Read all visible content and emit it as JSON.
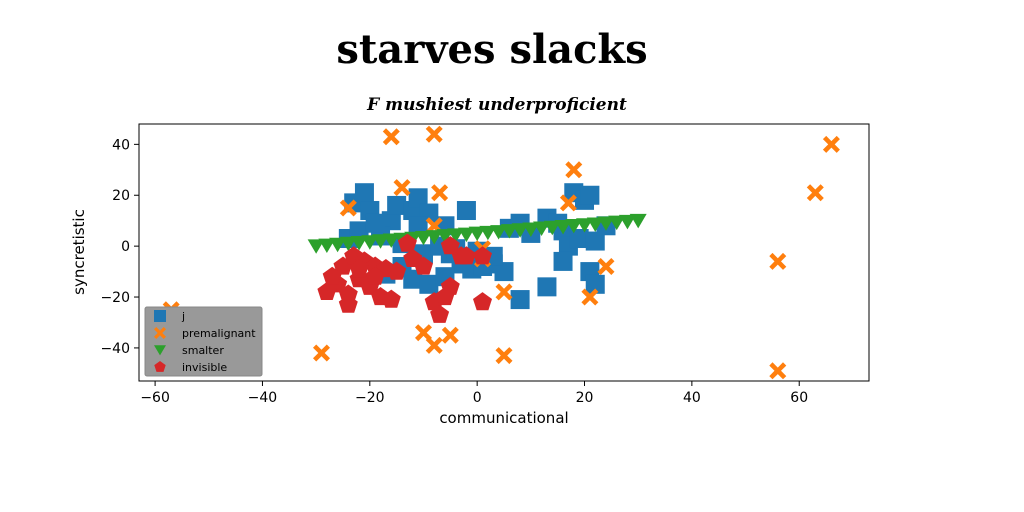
{
  "figure": {
    "suptitle": "starves slacks",
    "title": "F mushiest underproficient"
  },
  "chart_data": {
    "type": "scatter",
    "title": "F mushiest underproficient",
    "xlabel": "communicational",
    "ylabel": "syncretistic",
    "xlim": [
      -63,
      73
    ],
    "ylim": [
      -53,
      48
    ],
    "xticks": [
      -60,
      -40,
      -20,
      0,
      20,
      40,
      60
    ],
    "yticks": [
      -40,
      -20,
      0,
      20,
      40
    ],
    "grid": false,
    "legend_position": "lower-left",
    "series": [
      {
        "name": "j",
        "marker": "square",
        "color": "#1f77b4",
        "points": [
          [
            -23,
            17
          ],
          [
            -21,
            21
          ],
          [
            -20,
            14
          ],
          [
            -16,
            10
          ],
          [
            -15,
            16
          ],
          [
            -12,
            14
          ],
          [
            -11,
            19
          ],
          [
            -9,
            13
          ],
          [
            -6,
            8
          ],
          [
            -2,
            14
          ],
          [
            -24,
            3
          ],
          [
            -22,
            6
          ],
          [
            -18,
            4
          ],
          [
            -14,
            1
          ],
          [
            -10,
            -3
          ],
          [
            -7,
            0
          ],
          [
            -5,
            -3
          ],
          [
            -3,
            -7
          ],
          [
            -1,
            -9
          ],
          [
            1,
            -8
          ],
          [
            3,
            -7
          ],
          [
            5,
            -10
          ],
          [
            3,
            -4
          ],
          [
            6,
            7
          ],
          [
            8,
            9
          ],
          [
            10,
            5
          ],
          [
            13,
            11
          ],
          [
            15,
            9
          ],
          [
            16,
            6
          ],
          [
            17,
            0
          ],
          [
            18,
            21
          ],
          [
            20,
            18
          ],
          [
            21,
            20
          ],
          [
            19,
            3
          ],
          [
            22,
            2
          ],
          [
            24,
            8
          ],
          [
            16,
            -6
          ],
          [
            21,
            -10
          ],
          [
            22,
            -15
          ],
          [
            13,
            -16
          ],
          [
            8,
            -21
          ],
          [
            -12,
            -13
          ],
          [
            -9,
            -15
          ],
          [
            -14,
            -8
          ],
          [
            -17,
            -11
          ],
          [
            -6,
            -12
          ],
          [
            -4,
            -1
          ],
          [
            0,
            -2
          ],
          [
            -11,
            8
          ],
          [
            -19,
            9
          ]
        ]
      },
      {
        "name": "premalignant",
        "marker": "x",
        "color": "#ff7f0e",
        "points": [
          [
            -16,
            43
          ],
          [
            -8,
            44
          ],
          [
            -14,
            23
          ],
          [
            -7,
            21
          ],
          [
            -24,
            15
          ],
          [
            -8,
            8
          ],
          [
            1,
            -1
          ],
          [
            1,
            -5
          ],
          [
            5,
            -18
          ],
          [
            17,
            17
          ],
          [
            18,
            30
          ],
          [
            24,
            -8
          ],
          [
            21,
            -20
          ],
          [
            -57,
            -25
          ],
          [
            -29,
            -42
          ],
          [
            -10,
            -34
          ],
          [
            -8,
            -39
          ],
          [
            -5,
            -35
          ],
          [
            5,
            -43
          ],
          [
            56,
            -6
          ],
          [
            56,
            -49
          ],
          [
            63,
            21
          ],
          [
            66,
            40
          ]
        ]
      },
      {
        "name": "smalter",
        "marker": "triangle-down",
        "color": "#2ca02c",
        "points": [
          [
            -30,
            0
          ],
          [
            -28,
            0.3
          ],
          [
            -26,
            0.6
          ],
          [
            -24,
            1
          ],
          [
            -22,
            1.3
          ],
          [
            -20,
            1.6
          ],
          [
            -18,
            2
          ],
          [
            -16,
            2.3
          ],
          [
            -14,
            2.6
          ],
          [
            -12,
            3
          ],
          [
            -10,
            3.3
          ],
          [
            -8,
            3.6
          ],
          [
            -6,
            4
          ],
          [
            -4,
            4.3
          ],
          [
            -2,
            4.6
          ],
          [
            0,
            5
          ],
          [
            2,
            5.3
          ],
          [
            4,
            5.6
          ],
          [
            6,
            6
          ],
          [
            8,
            6.3
          ],
          [
            10,
            6.6
          ],
          [
            12,
            7
          ],
          [
            14,
            7.3
          ],
          [
            16,
            7.6
          ],
          [
            18,
            8
          ],
          [
            20,
            8.3
          ],
          [
            22,
            8.6
          ],
          [
            24,
            9
          ],
          [
            26,
            9.3
          ],
          [
            28,
            9.6
          ],
          [
            30,
            10
          ]
        ]
      },
      {
        "name": "invisible",
        "marker": "pentagon",
        "color": "#d62728",
        "points": [
          [
            -25,
            -8
          ],
          [
            -23,
            -4
          ],
          [
            -21,
            -6
          ],
          [
            -19,
            -8
          ],
          [
            -17,
            -9
          ],
          [
            -15,
            -10
          ],
          [
            -26,
            -15
          ],
          [
            -24,
            -19
          ],
          [
            -22,
            -13
          ],
          [
            -20,
            -16
          ],
          [
            -18,
            -20
          ],
          [
            -16,
            -21
          ],
          [
            -24,
            -23
          ],
          [
            -28,
            -18
          ],
          [
            -27,
            -12
          ],
          [
            -13,
            1
          ],
          [
            -10,
            -8
          ],
          [
            -8,
            -22
          ],
          [
            -7,
            -27
          ],
          [
            -5,
            -16
          ],
          [
            -3,
            -4
          ],
          [
            -2,
            -4
          ],
          [
            1,
            -4
          ],
          [
            -5,
            0
          ],
          [
            -6,
            -20
          ],
          [
            -19,
            -12
          ],
          [
            -22,
            -9
          ],
          [
            -12,
            -5
          ],
          [
            1,
            -22
          ]
        ]
      }
    ]
  }
}
